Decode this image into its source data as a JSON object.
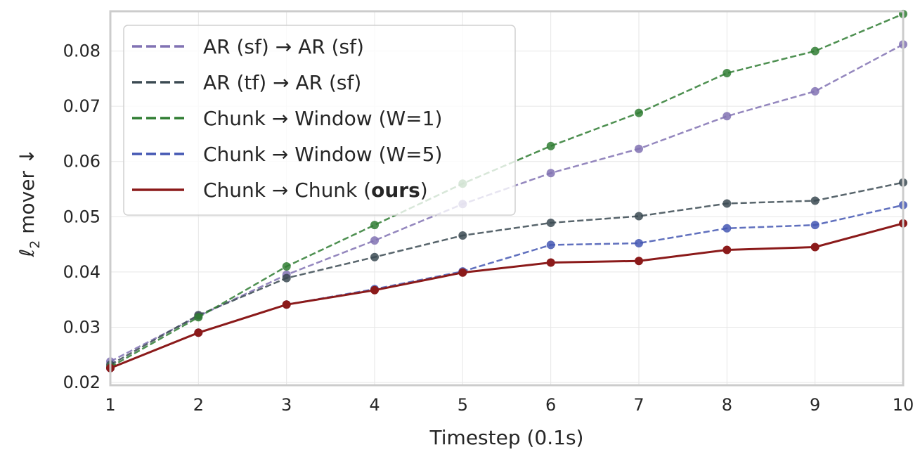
{
  "chart_data": {
    "type": "line",
    "xlabel": "Timestep (0.1s)",
    "ylabel_main": "ℓ",
    "ylabel_sub": "2",
    "ylabel_rest": " mover ↓",
    "x": [
      1,
      2,
      3,
      4,
      5,
      6,
      7,
      8,
      9,
      10
    ],
    "xticks": [
      "1",
      "2",
      "3",
      "4",
      "5",
      "6",
      "7",
      "8",
      "9",
      "10"
    ],
    "yticks": [
      "0.02",
      "0.03",
      "0.04",
      "0.05",
      "0.06",
      "0.07",
      "0.08"
    ],
    "ytick_values": [
      0.02,
      0.03,
      0.04,
      0.05,
      0.06,
      0.07,
      0.08
    ],
    "xlim": [
      1,
      10
    ],
    "ylim": [
      0.0195,
      0.0872
    ],
    "grid": true,
    "legend_position": "top-left",
    "series": [
      {
        "name": "AR (sf) → AR (sf)",
        "legend_parts": [
          {
            "text": "AR (sf) → AR (sf)",
            "bold": false
          }
        ],
        "color": "#8172b3",
        "dashed": true,
        "values": [
          0.0238,
          0.032,
          0.0395,
          0.0457,
          0.0523,
          0.0579,
          0.0623,
          0.0682,
          0.0727,
          0.0812
        ]
      },
      {
        "name": "AR (tf) → AR (sf)",
        "legend_parts": [
          {
            "text": "AR (tf) → AR (sf)",
            "bold": false
          }
        ],
        "color": "#3b4a52",
        "dashed": true,
        "values": [
          0.0232,
          0.0322,
          0.0389,
          0.0427,
          0.0466,
          0.0489,
          0.0501,
          0.0524,
          0.0529,
          0.0562
        ]
      },
      {
        "name": "Chunk → Window (W=1)",
        "legend_parts": [
          {
            "text": "Chunk → Window (W=1)",
            "bold": false
          }
        ],
        "color": "#2f7d32",
        "dashed": true,
        "values": [
          0.0228,
          0.0318,
          0.041,
          0.0485,
          0.056,
          0.0628,
          0.0688,
          0.076,
          0.08,
          0.0867
        ]
      },
      {
        "name": "Chunk → Window (W=5)",
        "legend_parts": [
          {
            "text": "Chunk → Window (W=5)",
            "bold": false
          }
        ],
        "color": "#4457b3",
        "dashed": true,
        "values": [
          0.0226,
          0.029,
          0.0341,
          0.0369,
          0.0401,
          0.0449,
          0.0452,
          0.0479,
          0.0485,
          0.0521
        ]
      },
      {
        "name": "Chunk → Chunk (ours)",
        "legend_parts": [
          {
            "text": "Chunk → Chunk (",
            "bold": false
          },
          {
            "text": "ours",
            "bold": true
          },
          {
            "text": ")",
            "bold": false
          }
        ],
        "color": "#8b1a1a",
        "dashed": false,
        "values": [
          0.0226,
          0.029,
          0.0341,
          0.0367,
          0.0399,
          0.0417,
          0.042,
          0.044,
          0.0445,
          0.0488
        ]
      }
    ]
  }
}
